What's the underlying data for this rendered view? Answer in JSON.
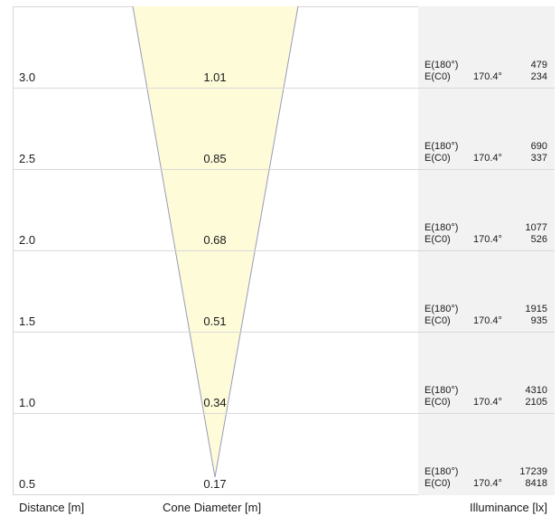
{
  "colors": {
    "cone_fill": "#fdfbd8",
    "cone_stroke": "#9a9ab8",
    "panel_bg": "#f2f2f2"
  },
  "rows": [
    {
      "distance": "3.0",
      "diameter": "1.01",
      "e180_label": "E(180°)",
      "e180_value": "479",
      "ec0_label": "E(C0)",
      "ec0_angle": "170.4°",
      "ec0_value": "234"
    },
    {
      "distance": "2.5",
      "diameter": "0.85",
      "e180_label": "E(180°)",
      "e180_value": "690",
      "ec0_label": "E(C0)",
      "ec0_angle": "170.4°",
      "ec0_value": "337"
    },
    {
      "distance": "2.0",
      "diameter": "0.68",
      "e180_label": "E(180°)",
      "e180_value": "1077",
      "ec0_label": "E(C0)",
      "ec0_angle": "170.4°",
      "ec0_value": "526"
    },
    {
      "distance": "1.5",
      "diameter": "0.51",
      "e180_label": "E(180°)",
      "e180_value": "1915",
      "ec0_label": "E(C0)",
      "ec0_angle": "170.4°",
      "ec0_value": "935"
    },
    {
      "distance": "1.0",
      "diameter": "0.34",
      "e180_label": "E(180°)",
      "e180_value": "4310",
      "ec0_label": "E(C0)",
      "ec0_angle": "170.4°",
      "ec0_value": "2105"
    },
    {
      "distance": "0.5",
      "diameter": "0.17",
      "e180_label": "E(180°)",
      "e180_value": "17239",
      "ec0_label": "E(C0)",
      "ec0_angle": "170.4°",
      "ec0_value": "8418"
    }
  ],
  "footer": {
    "distance_label": "Distance [m]",
    "diameter_label": "Cone Diameter [m]",
    "illuminance_label": "Illuminance [lx]"
  }
}
